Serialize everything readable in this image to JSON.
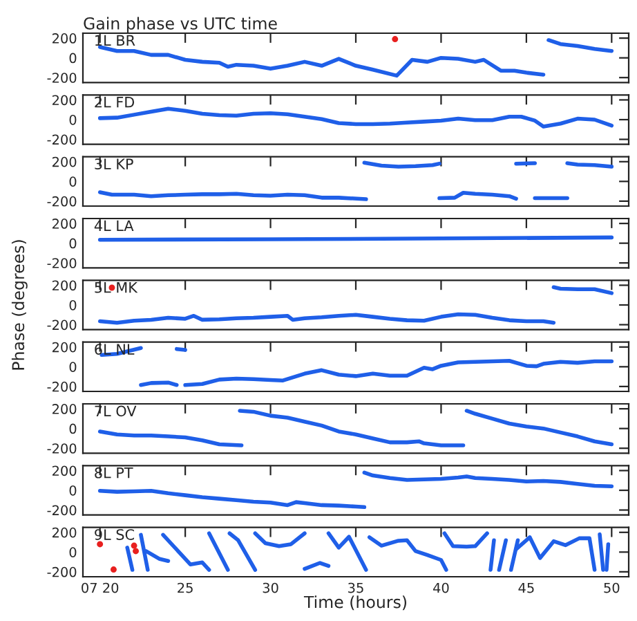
{
  "chart_data": [
    {
      "type": "line",
      "title": "Gain phase vs UTC time",
      "xlim": [
        19,
        51
      ],
      "ylim": [
        -250,
        250
      ],
      "yticks": [
        -200,
        0,
        200
      ],
      "xticks": [
        {
          "value": 20,
          "label": null
        },
        {
          "value": 25,
          "label": null
        },
        {
          "value": 30,
          "label": null
        },
        {
          "value": 35,
          "label": null
        },
        {
          "value": 40,
          "label": null
        },
        {
          "value": 45,
          "label": null
        },
        {
          "value": 50,
          "label": null
        }
      ],
      "tick_labels": "y",
      "grid": false,
      "series": [
        {
          "name": "1L BR",
          "color": "#1f5fe8",
          "x": [
            20,
            21,
            22,
            23,
            24,
            25,
            26,
            27,
            27.5,
            28,
            29,
            30,
            31,
            32,
            33,
            34,
            35,
            36,
            37.4,
            38.3,
            39.2,
            40,
            41,
            42,
            42.5,
            43.5,
            44.3,
            45,
            46
          ],
          "values": [
            110,
            70,
            70,
            30,
            30,
            -20,
            -40,
            -50,
            -90,
            -70,
            -80,
            -110,
            -80,
            -40,
            -80,
            -10,
            -80,
            -120,
            -180,
            -20,
            -40,
            0,
            -10,
            -40,
            -20,
            -130,
            -130,
            -150,
            -170
          ]
        },
        {
          "color": "#1f5fe8",
          "x": [
            46.3,
            47,
            48,
            49,
            50
          ],
          "values": [
            180,
            140,
            120,
            90,
            70
          ]
        },
        {
          "type": "scatter",
          "color": "#e8201f",
          "x": [
            37.3
          ],
          "values": [
            190
          ]
        }
      ]
    },
    {
      "type": "line",
      "xlim": [
        19,
        51
      ],
      "ylim": [
        -250,
        250
      ],
      "yticks": [
        -200,
        0,
        200
      ],
      "xticks": [
        {
          "value": 20,
          "label": null
        },
        {
          "value": 25,
          "label": null
        },
        {
          "value": 30,
          "label": null
        },
        {
          "value": 35,
          "label": null
        },
        {
          "value": 40,
          "label": null
        },
        {
          "value": 45,
          "label": null
        },
        {
          "value": 50,
          "label": null
        }
      ],
      "tick_labels": "y",
      "grid": false,
      "series": [
        {
          "name": "2L FD",
          "color": "#1f5fe8",
          "x": [
            20,
            21,
            22,
            23,
            24,
            25,
            26,
            27,
            28,
            29,
            30,
            31,
            32,
            33,
            34,
            35,
            36,
            37,
            38,
            39,
            40,
            41,
            42,
            43,
            44,
            44.7,
            45.5,
            46,
            47,
            48,
            49,
            50
          ],
          "values": [
            15,
            20,
            50,
            80,
            110,
            90,
            60,
            45,
            40,
            60,
            65,
            55,
            30,
            5,
            -35,
            -45,
            -45,
            -40,
            -30,
            -20,
            -10,
            10,
            -5,
            -5,
            30,
            30,
            -10,
            -70,
            -40,
            10,
            0,
            -60
          ]
        }
      ]
    },
    {
      "type": "line",
      "xlim": [
        19,
        51
      ],
      "ylim": [
        -250,
        250
      ],
      "yticks": [
        -200,
        0,
        200
      ],
      "xticks": [
        {
          "value": 20,
          "label": null
        },
        {
          "value": 25,
          "label": null
        },
        {
          "value": 30,
          "label": null
        },
        {
          "value": 35,
          "label": null
        },
        {
          "value": 40,
          "label": null
        },
        {
          "value": 45,
          "label": null
        },
        {
          "value": 50,
          "label": null
        }
      ],
      "tick_labels": "y",
      "grid": false,
      "series": [
        {
          "name": "3L KP",
          "color": "#1f5fe8",
          "x": [
            20,
            20.7,
            22,
            23,
            24,
            25,
            26,
            27,
            28,
            29,
            30,
            31,
            32,
            33,
            34,
            35.6
          ],
          "values": [
            -110,
            -135,
            -135,
            -150,
            -140,
            -135,
            -130,
            -130,
            -125,
            -140,
            -145,
            -135,
            -140,
            -165,
            -165,
            -180
          ]
        },
        {
          "color": "#1f5fe8",
          "x": [
            35.5,
            36.5,
            37.5,
            38.5,
            39.5,
            39.9
          ],
          "values": [
            190,
            160,
            150,
            155,
            165,
            180
          ]
        },
        {
          "color": "#1f5fe8",
          "x": [
            39.9,
            40.8,
            41.3,
            42,
            43,
            44,
            44.4
          ],
          "values": [
            -170,
            -165,
            -115,
            -125,
            -135,
            -150,
            -175
          ]
        },
        {
          "color": "#1f5fe8",
          "x": [
            44.4,
            45.5
          ],
          "values": [
            180,
            185
          ]
        },
        {
          "color": "#1f5fe8",
          "x": [
            45.5,
            47.4
          ],
          "values": [
            -170,
            -170
          ]
        },
        {
          "color": "#1f5fe8",
          "x": [
            47.4,
            48,
            49,
            50
          ],
          "values": [
            185,
            170,
            165,
            150
          ]
        }
      ]
    },
    {
      "type": "line",
      "xlim": [
        19,
        51
      ],
      "ylim": [
        -250,
        250
      ],
      "yticks": [
        -200,
        0,
        200
      ],
      "xticks": [
        {
          "value": 20,
          "label": null
        },
        {
          "value": 25,
          "label": null
        },
        {
          "value": 30,
          "label": null
        },
        {
          "value": 35,
          "label": null
        },
        {
          "value": 40,
          "label": null
        },
        {
          "value": 45,
          "label": null
        },
        {
          "value": 50,
          "label": null
        }
      ],
      "tick_labels": "y",
      "grid": false,
      "series": [
        {
          "name": "4L LA",
          "color": "#1f5fe8",
          "x": [
            20,
            30,
            40,
            50
          ],
          "values": [
            35,
            40,
            48,
            58
          ]
        }
      ]
    },
    {
      "type": "line",
      "ylabel": "Phase (degrees)",
      "xlim": [
        19,
        51
      ],
      "ylim": [
        -250,
        250
      ],
      "yticks": [
        -200,
        0,
        200
      ],
      "xticks": [
        {
          "value": 20,
          "label": null
        },
        {
          "value": 25,
          "label": null
        },
        {
          "value": 30,
          "label": null
        },
        {
          "value": 35,
          "label": null
        },
        {
          "value": 40,
          "label": null
        },
        {
          "value": 45,
          "label": null
        },
        {
          "value": 50,
          "label": null
        }
      ],
      "tick_labels": "y",
      "grid": false,
      "series": [
        {
          "name": "5L MK",
          "color": "#1f5fe8",
          "x": [
            20,
            21,
            22,
            23,
            24,
            25,
            25.5,
            26,
            27,
            28,
            29,
            30,
            31,
            31.3,
            32,
            33,
            34,
            35,
            36,
            37,
            38,
            39,
            40,
            41,
            42,
            43,
            44,
            45,
            46,
            46.6
          ],
          "values": [
            -165,
            -180,
            -160,
            -150,
            -130,
            -140,
            -110,
            -150,
            -145,
            -135,
            -130,
            -120,
            -110,
            -150,
            -135,
            -125,
            -110,
            -100,
            -120,
            -140,
            -155,
            -160,
            -120,
            -95,
            -100,
            -130,
            -155,
            -165,
            -165,
            -180
          ]
        },
        {
          "color": "#1f5fe8",
          "x": [
            46.6,
            47,
            48,
            49,
            50
          ],
          "values": [
            180,
            165,
            160,
            160,
            120
          ]
        },
        {
          "type": "scatter",
          "color": "#e8201f",
          "x": [
            20.7
          ],
          "values": [
            175
          ]
        }
      ]
    },
    {
      "type": "line",
      "xlim": [
        19,
        51
      ],
      "ylim": [
        -250,
        250
      ],
      "yticks": [
        -200,
        0,
        200
      ],
      "xticks": [
        {
          "value": 20,
          "label": null
        },
        {
          "value": 25,
          "label": null
        },
        {
          "value": 30,
          "label": null
        },
        {
          "value": 35,
          "label": null
        },
        {
          "value": 40,
          "label": null
        },
        {
          "value": 45,
          "label": null
        },
        {
          "value": 50,
          "label": null
        }
      ],
      "tick_labels": "y",
      "grid": false,
      "series": [
        {
          "name": "6L NL",
          "color": "#1f5fe8",
          "x": [
            20.1,
            21,
            22.4
          ],
          "values": [
            120,
            130,
            190
          ]
        },
        {
          "color": "#1f5fe8",
          "x": [
            22.4,
            23,
            24,
            24.5
          ],
          "values": [
            -185,
            -165,
            -160,
            -185
          ]
        },
        {
          "color": "#1f5fe8",
          "x": [
            24.5,
            25
          ],
          "values": [
            180,
            170
          ]
        },
        {
          "color": "#1f5fe8",
          "x": [
            25,
            26,
            27,
            28,
            29,
            30,
            30.7,
            32,
            33,
            34,
            35,
            36,
            37,
            38,
            39,
            39.5,
            40,
            41,
            42,
            43,
            44,
            45,
            45.6,
            46,
            47,
            48,
            49,
            50
          ],
          "values": [
            -185,
            -175,
            -130,
            -120,
            -125,
            -135,
            -140,
            -70,
            -35,
            -80,
            -95,
            -70,
            -90,
            -90,
            -10,
            -25,
            10,
            45,
            50,
            55,
            60,
            10,
            5,
            30,
            50,
            40,
            55,
            55
          ]
        }
      ]
    },
    {
      "type": "line",
      "xlim": [
        19,
        51
      ],
      "ylim": [
        -250,
        250
      ],
      "yticks": [
        -200,
        0,
        200
      ],
      "xticks": [
        {
          "value": 20,
          "label": null
        },
        {
          "value": 25,
          "label": null
        },
        {
          "value": 30,
          "label": null
        },
        {
          "value": 35,
          "label": null
        },
        {
          "value": 40,
          "label": null
        },
        {
          "value": 45,
          "label": null
        },
        {
          "value": 50,
          "label": null
        }
      ],
      "tick_labels": "y",
      "grid": false,
      "series": [
        {
          "name": "7L OV",
          "color": "#1f5fe8",
          "x": [
            20,
            21,
            22,
            23,
            24,
            25,
            26,
            27,
            28.3
          ],
          "values": [
            -30,
            -60,
            -70,
            -70,
            -80,
            -90,
            -120,
            -160,
            -170
          ]
        },
        {
          "color": "#1f5fe8",
          "x": [
            28.2,
            29,
            30,
            31,
            32,
            33,
            34,
            35,
            36,
            37,
            38,
            38.7,
            39,
            40,
            41.3
          ],
          "values": [
            180,
            170,
            130,
            110,
            70,
            30,
            -30,
            -60,
            -100,
            -140,
            -140,
            -130,
            -150,
            -170,
            -170
          ]
        },
        {
          "color": "#1f5fe8",
          "x": [
            41.5,
            42,
            43,
            44,
            45,
            46,
            47,
            48,
            49,
            50
          ],
          "values": [
            180,
            150,
            100,
            50,
            20,
            0,
            -40,
            -80,
            -130,
            -160
          ]
        }
      ]
    },
    {
      "type": "line",
      "xlim": [
        19,
        51
      ],
      "ylim": [
        -250,
        250
      ],
      "yticks": [
        -200,
        0,
        200
      ],
      "xticks": [
        {
          "value": 20,
          "label": null
        },
        {
          "value": 25,
          "label": null
        },
        {
          "value": 30,
          "label": null
        },
        {
          "value": 35,
          "label": null
        },
        {
          "value": 40,
          "label": null
        },
        {
          "value": 45,
          "label": null
        },
        {
          "value": 50,
          "label": null
        }
      ],
      "tick_labels": "y",
      "grid": false,
      "series": [
        {
          "name": "8L PT",
          "color": "#1f5fe8",
          "x": [
            20,
            21,
            22,
            23,
            24,
            25,
            26,
            27,
            28,
            29,
            30,
            31,
            31.5,
            32,
            33,
            34,
            35,
            35.5
          ],
          "values": [
            -5,
            -15,
            -10,
            -5,
            -30,
            -50,
            -70,
            -85,
            -100,
            -115,
            -125,
            -150,
            -120,
            -130,
            -150,
            -155,
            -165,
            -170
          ]
        },
        {
          "color": "#1f5fe8",
          "x": [
            35.5,
            36,
            37,
            38,
            39,
            40,
            41,
            41.5,
            42,
            43,
            44,
            45,
            46,
            47,
            48,
            49,
            50
          ],
          "values": [
            180,
            150,
            125,
            105,
            110,
            115,
            130,
            140,
            125,
            115,
            105,
            90,
            95,
            85,
            65,
            45,
            40
          ]
        }
      ]
    },
    {
      "type": "line",
      "xlabel": "Time (hours)",
      "xlim": [
        19,
        51
      ],
      "ylim": [
        -250,
        250
      ],
      "yticks": [
        -200,
        0,
        200
      ],
      "xticks": [
        {
          "value": 20,
          "label": "07 20"
        },
        25,
        30,
        35,
        40,
        45,
        50
      ],
      "grid": false,
      "series": [
        {
          "name": "9L SC",
          "color": "#1f5fe8",
          "x": [
            21.6,
            21.9
          ],
          "values": [
            45,
            -180
          ]
        },
        {
          "color": "#1f5fe8",
          "x": [
            22.4,
            22.8
          ],
          "values": [
            175,
            -180
          ]
        },
        {
          "color": "#1f5fe8",
          "x": [
            22.7,
            23.5,
            24
          ],
          "values": [
            10,
            -70,
            -90
          ]
        },
        {
          "color": "#1f5fe8",
          "x": [
            23.7,
            25.3,
            26,
            26.4
          ],
          "values": [
            175,
            -125,
            -105,
            -180
          ]
        },
        {
          "color": "#1f5fe8",
          "x": [
            26.4,
            27.5
          ],
          "values": [
            190,
            -180
          ]
        },
        {
          "color": "#1f5fe8",
          "x": [
            27.6,
            28.1,
            29.1
          ],
          "values": [
            190,
            120,
            -180
          ]
        },
        {
          "color": "#1f5fe8",
          "x": [
            29.1,
            29.7,
            30.5,
            31.2,
            32
          ],
          "values": [
            190,
            90,
            60,
            80,
            190
          ]
        },
        {
          "color": "#1f5fe8",
          "x": [
            32,
            32.9,
            33.4
          ],
          "values": [
            -170,
            -110,
            -140
          ]
        },
        {
          "color": "#1f5fe8",
          "x": [
            33.4,
            34,
            34.6,
            35.6
          ],
          "values": [
            190,
            45,
            155,
            -180
          ]
        },
        {
          "color": "#1f5fe8",
          "x": [
            35.8,
            36.5,
            37.5,
            38,
            38.5,
            39.2,
            40,
            40.3
          ],
          "values": [
            150,
            65,
            115,
            120,
            10,
            -30,
            -80,
            -180
          ]
        },
        {
          "color": "#1f5fe8",
          "x": [
            40.2,
            40.7,
            41.5,
            42,
            42.7
          ],
          "values": [
            190,
            60,
            55,
            60,
            190
          ]
        },
        {
          "color": "#1f5fe8",
          "x": [
            42.9,
            43.1
          ],
          "values": [
            -180,
            120
          ]
        },
        {
          "color": "#1f5fe8",
          "x": [
            43.4,
            43.8
          ],
          "values": [
            -180,
            120
          ]
        },
        {
          "color": "#1f5fe8",
          "x": [
            44.1,
            44.5
          ],
          "values": [
            -180,
            120
          ]
        },
        {
          "color": "#1f5fe8",
          "x": [
            44.4,
            45.2,
            45.8,
            46.6,
            47.3,
            48.1,
            48.7,
            49
          ],
          "values": [
            30,
            150,
            -60,
            110,
            70,
            140,
            140,
            -180
          ]
        },
        {
          "color": "#1f5fe8",
          "x": [
            49.3,
            49.5
          ],
          "values": [
            180,
            -180
          ]
        },
        {
          "color": "#1f5fe8",
          "x": [
            49.8,
            49.7
          ],
          "values": [
            80,
            -180
          ]
        },
        {
          "type": "scatter",
          "color": "#e8201f",
          "x": [
            20,
            20.8,
            22,
            22.1
          ],
          "values": [
            80,
            -177,
            65,
            10
          ]
        }
      ]
    }
  ]
}
